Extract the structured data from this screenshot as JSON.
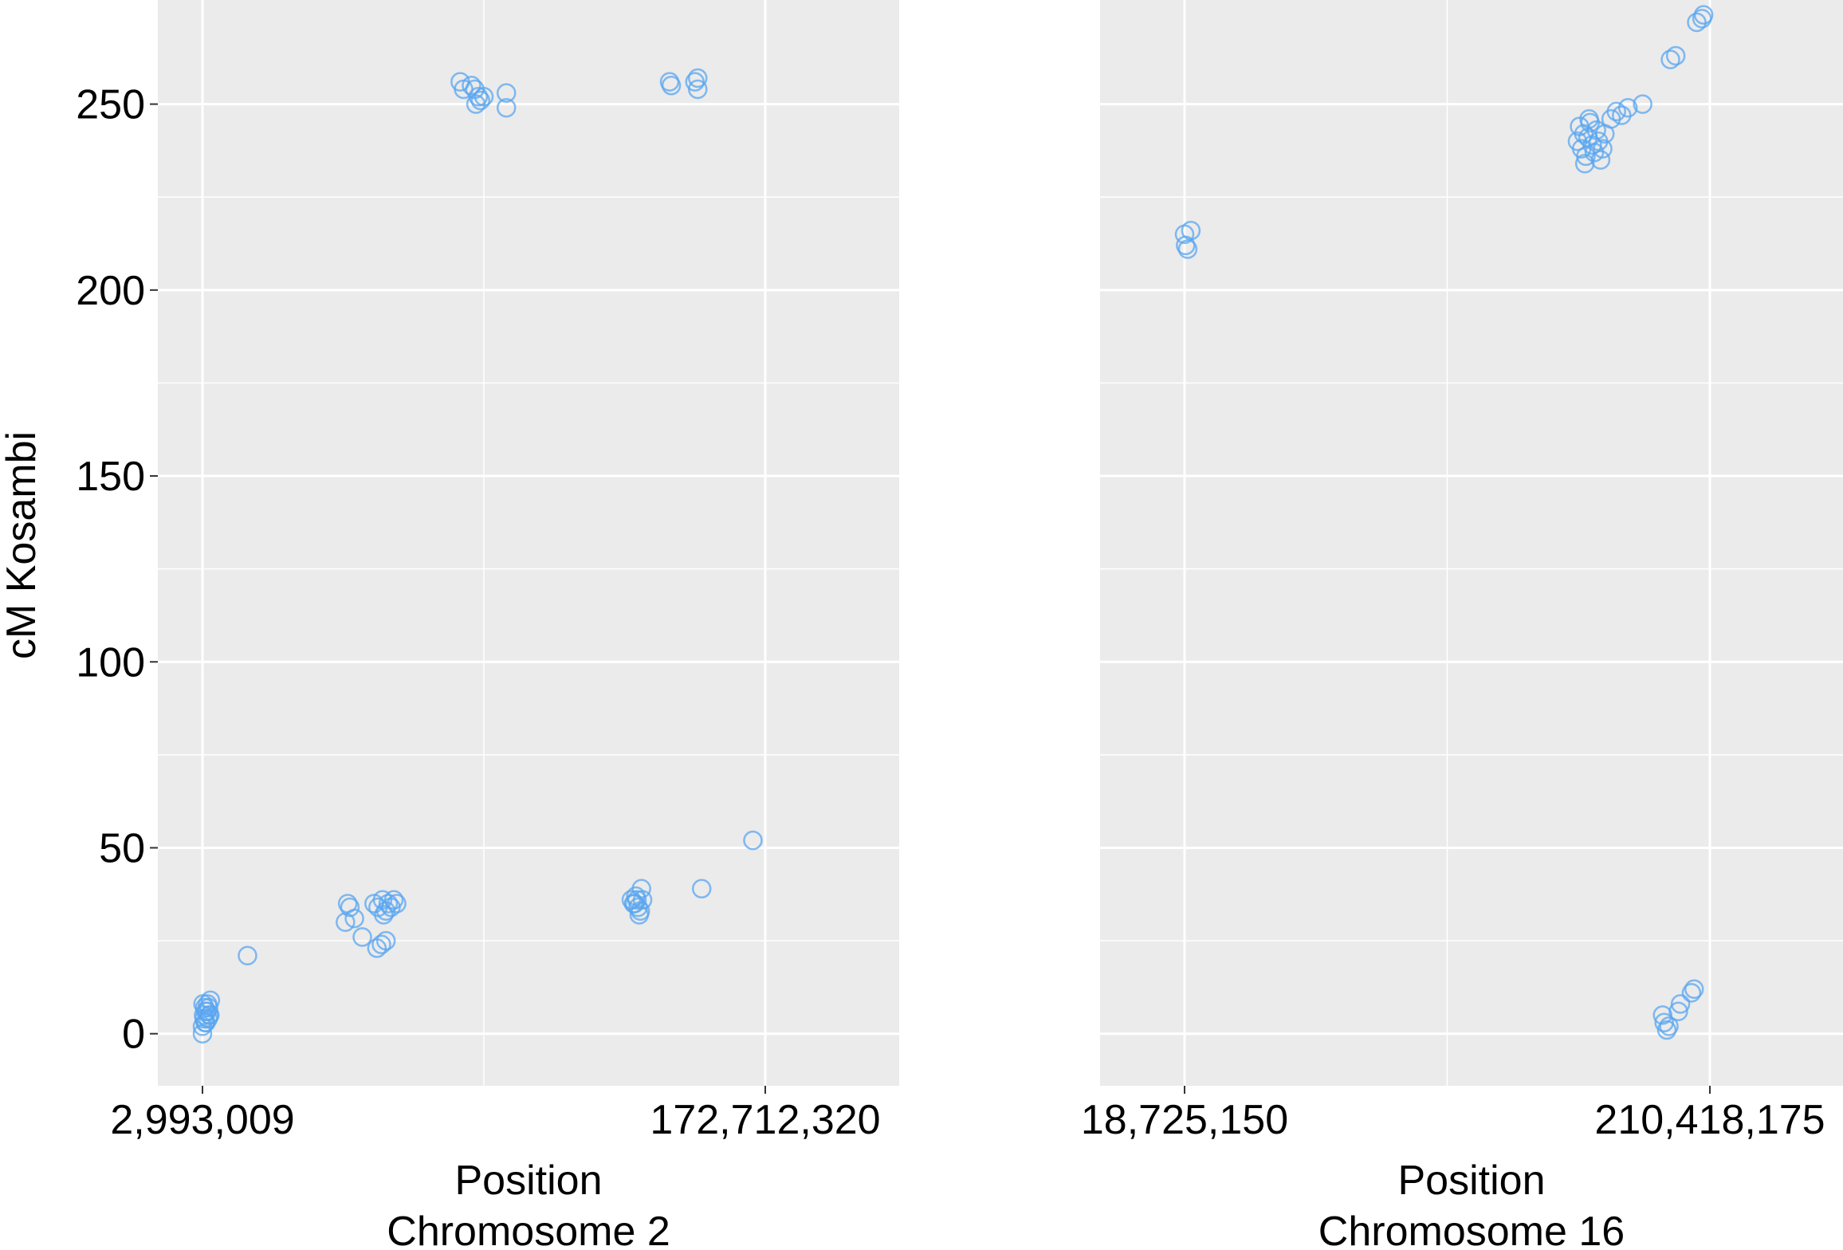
{
  "chart_data": [
    {
      "type": "scatter",
      "panel": "left",
      "xlabel": "Position",
      "subtitle": "Chromosome 2",
      "ylabel": "cM Kosambi",
      "x_tick_labels": [
        "2,993,009",
        "172,712,320"
      ],
      "y_ticks": [
        0,
        50,
        100,
        150,
        200,
        250
      ],
      "ylim": [
        -14,
        278
      ],
      "grid": true,
      "marker": "open-circle",
      "point_color": "#5aa5f0",
      "panel_background": "#ebebeb",
      "points": [
        {
          "x": 0.0,
          "y": 0
        },
        {
          "x": 0.0,
          "y": 2
        },
        {
          "x": 0.005,
          "y": 3
        },
        {
          "x": 0.01,
          "y": 4
        },
        {
          "x": 0.002,
          "y": 5
        },
        {
          "x": 0.006,
          "y": 6
        },
        {
          "x": 0.012,
          "y": 5
        },
        {
          "x": 0.004,
          "y": 7
        },
        {
          "x": 0.009,
          "y": 8
        },
        {
          "x": 0.014,
          "y": 9
        },
        {
          "x": 0.003,
          "y": 4
        },
        {
          "x": 0.008,
          "y": 6
        },
        {
          "x": 0.011,
          "y": 7
        },
        {
          "x": 0.001,
          "y": 8
        },
        {
          "x": 0.006,
          "y": 3
        },
        {
          "x": 0.013,
          "y": 5
        },
        {
          "x": 0.08,
          "y": 21
        },
        {
          "x": 0.258,
          "y": 35
        },
        {
          "x": 0.262,
          "y": 34
        },
        {
          "x": 0.254,
          "y": 30
        },
        {
          "x": 0.27,
          "y": 31
        },
        {
          "x": 0.284,
          "y": 26
        },
        {
          "x": 0.305,
          "y": 35
        },
        {
          "x": 0.312,
          "y": 34
        },
        {
          "x": 0.32,
          "y": 36
        },
        {
          "x": 0.326,
          "y": 33
        },
        {
          "x": 0.33,
          "y": 35
        },
        {
          "x": 0.322,
          "y": 32
        },
        {
          "x": 0.31,
          "y": 23
        },
        {
          "x": 0.318,
          "y": 24
        },
        {
          "x": 0.326,
          "y": 25
        },
        {
          "x": 0.335,
          "y": 34
        },
        {
          "x": 0.34,
          "y": 36
        },
        {
          "x": 0.345,
          "y": 35
        },
        {
          "x": 0.458,
          "y": 256
        },
        {
          "x": 0.464,
          "y": 254
        },
        {
          "x": 0.478,
          "y": 255
        },
        {
          "x": 0.484,
          "y": 254
        },
        {
          "x": 0.49,
          "y": 252
        },
        {
          "x": 0.494,
          "y": 251
        },
        {
          "x": 0.5,
          "y": 252
        },
        {
          "x": 0.54,
          "y": 253
        },
        {
          "x": 0.54,
          "y": 249
        },
        {
          "x": 0.486,
          "y": 250
        },
        {
          "x": 0.762,
          "y": 36
        },
        {
          "x": 0.766,
          "y": 35
        },
        {
          "x": 0.77,
          "y": 37
        },
        {
          "x": 0.774,
          "y": 34
        },
        {
          "x": 0.778,
          "y": 33
        },
        {
          "x": 0.78,
          "y": 39
        },
        {
          "x": 0.772,
          "y": 36
        },
        {
          "x": 0.776,
          "y": 32
        },
        {
          "x": 0.768,
          "y": 35
        },
        {
          "x": 0.782,
          "y": 36
        },
        {
          "x": 0.83,
          "y": 256
        },
        {
          "x": 0.833,
          "y": 255
        },
        {
          "x": 0.875,
          "y": 256
        },
        {
          "x": 0.88,
          "y": 257
        },
        {
          "x": 0.88,
          "y": 254
        },
        {
          "x": 0.887,
          "y": 39
        },
        {
          "x": 0.978,
          "y": 52
        }
      ]
    },
    {
      "type": "scatter",
      "panel": "right",
      "xlabel": "Position",
      "subtitle": "Chromosome 16",
      "x_tick_labels": [
        "18,725,150",
        "210,418,175"
      ],
      "y_ticks": [
        0,
        50,
        100,
        150,
        200,
        250
      ],
      "ylim": [
        -14,
        278
      ],
      "grid": true,
      "marker": "open-circle",
      "point_color": "#5aa5f0",
      "panel_background": "#ebebeb",
      "points": [
        {
          "x": 0.0,
          "y": 215
        },
        {
          "x": 0.002,
          "y": 212
        },
        {
          "x": 0.006,
          "y": 211
        },
        {
          "x": 0.012,
          "y": 216
        },
        {
          "x": 0.748,
          "y": 240
        },
        {
          "x": 0.752,
          "y": 244
        },
        {
          "x": 0.756,
          "y": 238
        },
        {
          "x": 0.76,
          "y": 242
        },
        {
          "x": 0.764,
          "y": 236
        },
        {
          "x": 0.768,
          "y": 241
        },
        {
          "x": 0.772,
          "y": 245
        },
        {
          "x": 0.776,
          "y": 239
        },
        {
          "x": 0.78,
          "y": 237
        },
        {
          "x": 0.784,
          "y": 243
        },
        {
          "x": 0.788,
          "y": 240
        },
        {
          "x": 0.792,
          "y": 235
        },
        {
          "x": 0.796,
          "y": 238
        },
        {
          "x": 0.8,
          "y": 242
        },
        {
          "x": 0.762,
          "y": 234
        },
        {
          "x": 0.77,
          "y": 246
        },
        {
          "x": 0.812,
          "y": 246
        },
        {
          "x": 0.822,
          "y": 248
        },
        {
          "x": 0.832,
          "y": 247
        },
        {
          "x": 0.844,
          "y": 249
        },
        {
          "x": 0.872,
          "y": 250
        },
        {
          "x": 0.925,
          "y": 262
        },
        {
          "x": 0.935,
          "y": 263
        },
        {
          "x": 0.975,
          "y": 272
        },
        {
          "x": 0.985,
          "y": 273
        },
        {
          "x": 0.988,
          "y": 274
        },
        {
          "x": 0.91,
          "y": 5
        },
        {
          "x": 0.913,
          "y": 3
        },
        {
          "x": 0.918,
          "y": 1
        },
        {
          "x": 0.922,
          "y": 2
        },
        {
          "x": 0.94,
          "y": 6
        },
        {
          "x": 0.944,
          "y": 8
        },
        {
          "x": 0.965,
          "y": 11
        },
        {
          "x": 0.97,
          "y": 12
        }
      ]
    }
  ]
}
